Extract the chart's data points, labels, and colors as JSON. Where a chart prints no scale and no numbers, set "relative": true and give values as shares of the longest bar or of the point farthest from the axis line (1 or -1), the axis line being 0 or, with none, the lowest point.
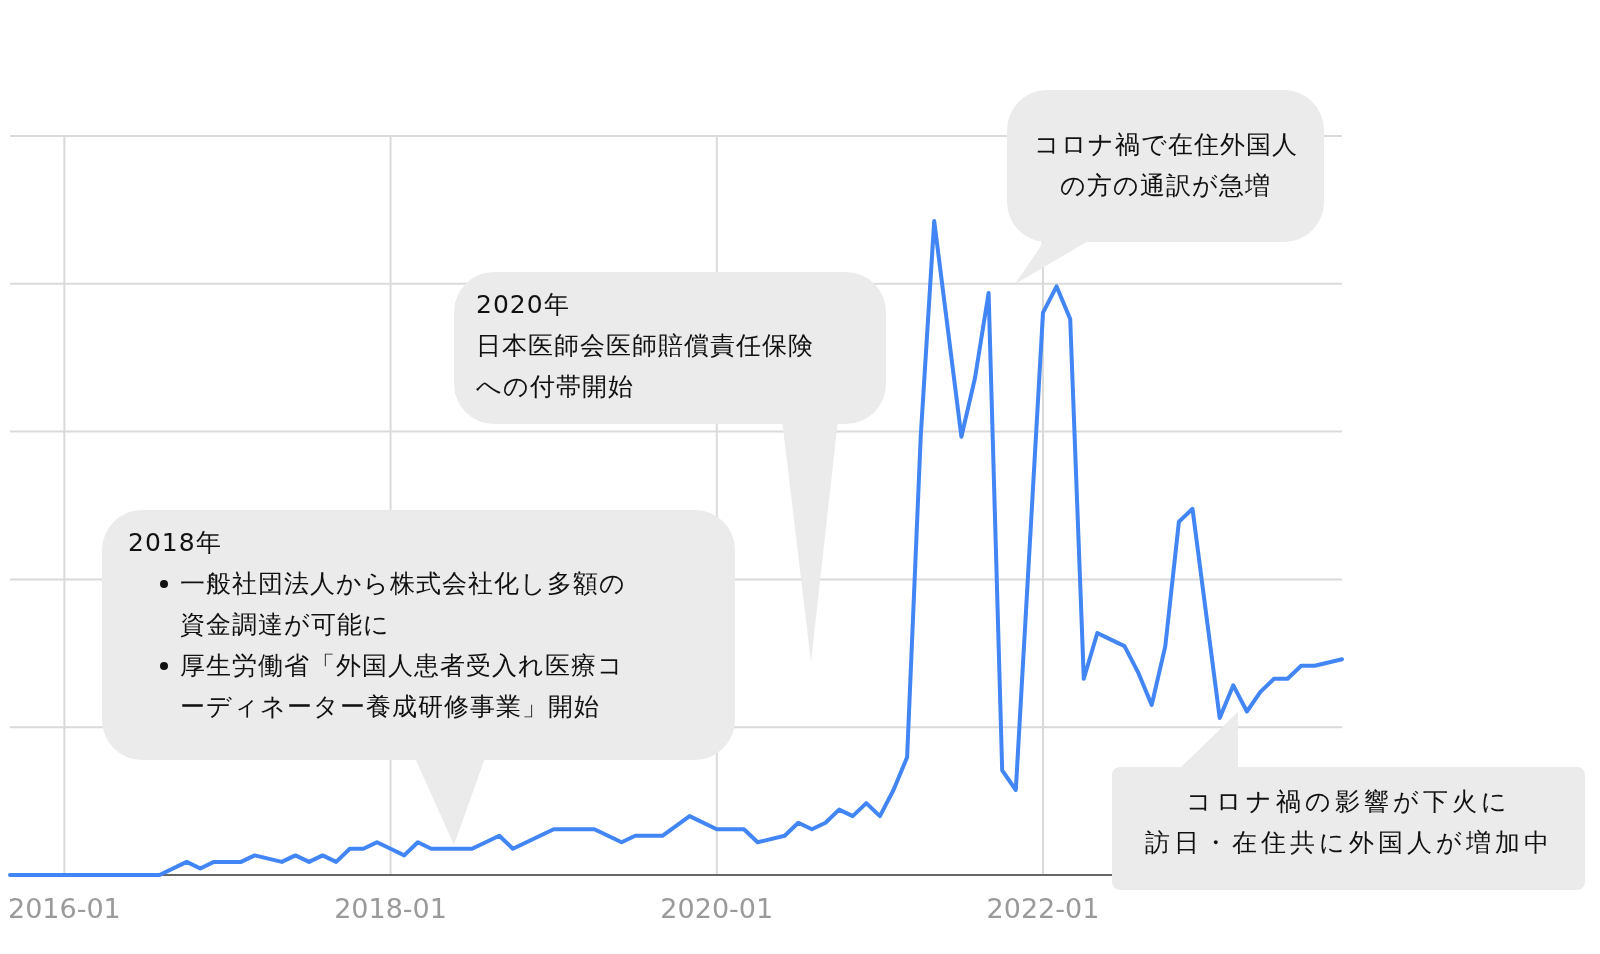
{
  "chart_data": {
    "type": "line",
    "relative": true,
    "grid": true,
    "marker": "none",
    "line_style": "solid",
    "xlim": [
      "2015-09",
      "2023-11"
    ],
    "xticks": [
      "2016-01",
      "2018-01",
      "2020-01",
      "2022-01"
    ],
    "x": [
      "2015-09",
      "2016-08",
      "2016-10",
      "2016-11",
      "2016-12",
      "2017-02",
      "2017-03",
      "2017-05",
      "2017-06",
      "2017-07",
      "2017-08",
      "2017-09",
      "2017-10",
      "2017-11",
      "2017-12",
      "2018-01",
      "2018-02",
      "2018-03",
      "2018-04",
      "2018-05",
      "2018-06",
      "2018-07",
      "2018-09",
      "2018-10",
      "2019-01",
      "2019-02",
      "2019-03",
      "2019-04",
      "2019-06",
      "2019-07",
      "2019-08",
      "2019-09",
      "2019-11",
      "2020-01",
      "2020-02",
      "2020-03",
      "2020-04",
      "2020-06",
      "2020-07",
      "2020-08",
      "2020-09",
      "2020-10",
      "2020-11",
      "2020-12",
      "2021-01",
      "2021-02",
      "2021-03",
      "2021-04",
      "2021-05",
      "2021-07",
      "2021-08",
      "2021-09",
      "2021-10",
      "2021-11",
      "2022-01",
      "2022-02",
      "2022-03",
      "2022-04",
      "2022-05",
      "2022-06",
      "2022-07",
      "2022-08",
      "2022-09",
      "2022-10",
      "2022-11",
      "2022-12",
      "2023-01",
      "2023-02",
      "2023-03",
      "2023-04",
      "2023-05",
      "2023-06",
      "2023-07",
      "2023-08",
      "2023-09",
      "2023-11"
    ],
    "series": [
      {
        "color": "#4285f4",
        "values": [
          0,
          0,
          0.02,
          0.01,
          0.02,
          0.02,
          0.03,
          0.02,
          0.03,
          0.02,
          0.03,
          0.02,
          0.04,
          0.04,
          0.05,
          0.04,
          0.03,
          0.05,
          0.04,
          0.04,
          0.04,
          0.04,
          0.06,
          0.04,
          0.07,
          0.07,
          0.07,
          0.07,
          0.05,
          0.06,
          0.06,
          0.06,
          0.09,
          0.07,
          0.07,
          0.07,
          0.05,
          0.06,
          0.08,
          0.07,
          0.08,
          0.1,
          0.09,
          0.11,
          0.09,
          0.13,
          0.18,
          0.67,
          1,
          0.67,
          0.76,
          0.89,
          0.16,
          0.13,
          0.86,
          0.9,
          0.85,
          0.3,
          0.37,
          0.36,
          0.35,
          0.31,
          0.26,
          0.35,
          0.54,
          0.56,
          0.4,
          0.24,
          0.29,
          0.25,
          0.28,
          0.3,
          0.3,
          0.32,
          0.32,
          0.33
        ]
      }
    ],
    "annotations": [
      "2018年",
      "一般社団法人から株式会社化し多額の資金調達が可能に",
      "厚生労働省「外国人患者受入れ医療コーディネーター養成研修事業」開始",
      "2020年",
      "日本医師会医師賠償責任保険への付帯開始",
      "コロナ禍で在住外国人の方の通訳が急増",
      "コロナ禍の影響が下火に",
      "訪日・在住共に外国人が増加中"
    ]
  }
}
